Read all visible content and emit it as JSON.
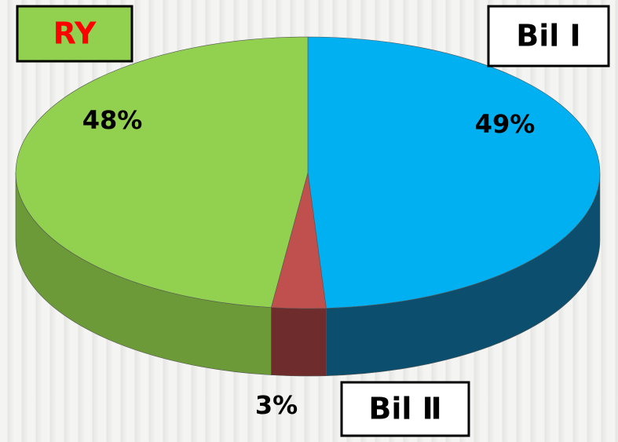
{
  "chart_data": {
    "type": "pie",
    "categories": [
      "Bil Ⅰ",
      "Bil Ⅱ",
      "RY"
    ],
    "values": [
      49,
      3,
      48
    ],
    "value_labels": [
      "49%",
      "3%",
      "48%"
    ],
    "colors": [
      "#00b0f0",
      "#c0504d",
      "#92d050"
    ],
    "side_colors": [
      "#0c4e6e",
      "#6e2c2c",
      "#6c9a38"
    ],
    "label_colors": [
      "#000000",
      "#000000",
      "#ff0000"
    ],
    "box_colors": [
      "#ffffff",
      "#ffffff",
      "#92d050"
    ]
  }
}
